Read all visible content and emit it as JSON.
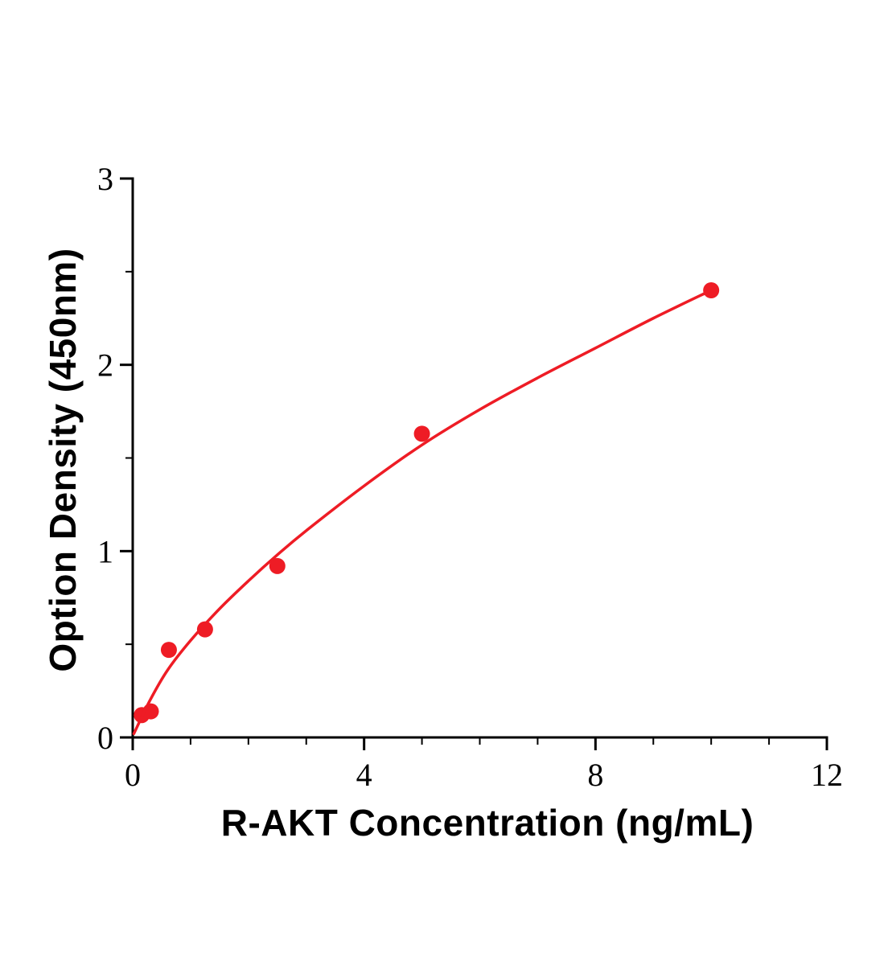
{
  "figure": {
    "background_color": "#ffffff"
  },
  "chart_data": {
    "type": "scatter",
    "title": "",
    "xlabel": "R-AKT Concentration (ng/mL)",
    "ylabel": "Option Density (450nm)",
    "xlim": [
      0,
      12
    ],
    "ylim": [
      0,
      3
    ],
    "x_major_ticks": [
      0,
      4,
      8,
      12
    ],
    "y_major_ticks": [
      0,
      1,
      2,
      3
    ],
    "x_minor_step": 1,
    "y_minor_step": 0.5,
    "grid": false,
    "legend": false,
    "accent_color": "#ee1c25",
    "axis_color": "#000000",
    "series": [
      {
        "name": "standard-points",
        "type": "scatter",
        "x": [
          0.156,
          0.313,
          0.625,
          1.25,
          2.5,
          5,
          10
        ],
        "y": [
          0.12,
          0.14,
          0.47,
          0.58,
          0.92,
          1.63,
          2.4
        ]
      },
      {
        "name": "fit-curve",
        "type": "line",
        "x": [
          0.02,
          0.3,
          0.6,
          1.0,
          1.5,
          2.0,
          2.5,
          3.0,
          4.0,
          5.0,
          6.0,
          7.0,
          8.0,
          9.0,
          10.0
        ],
        "y": [
          0.02,
          0.2,
          0.36,
          0.52,
          0.69,
          0.84,
          0.98,
          1.11,
          1.35,
          1.57,
          1.76,
          1.93,
          2.09,
          2.25,
          2.4
        ]
      }
    ]
  }
}
